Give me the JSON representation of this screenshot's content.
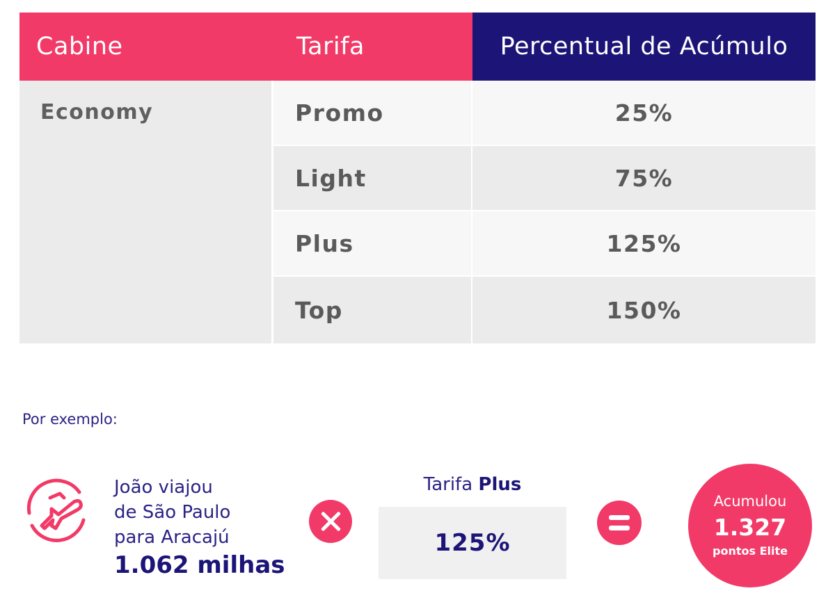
{
  "table": {
    "headers": {
      "cabine": "Cabine",
      "tarifa": "Tarifa",
      "percentual": "Percentual de Acúmulo"
    },
    "cabine": "Economy",
    "rows": [
      {
        "tarifa": "Promo",
        "percentual": "25%"
      },
      {
        "tarifa": "Light",
        "percentual": "75%"
      },
      {
        "tarifa": "Plus",
        "percentual": "125%"
      },
      {
        "tarifa": "Top",
        "percentual": "150%"
      }
    ]
  },
  "example": {
    "intro": "Por exemplo:",
    "trip_lines": [
      "João viajou",
      "de São Paulo",
      "para Aracajú"
    ],
    "miles": "1.062 milhas",
    "fare_prefix": "Tarifa",
    "fare_name": "Plus",
    "fare_percent": "125%",
    "result_top": "Acumulou",
    "result_value": "1.327",
    "result_bottom": "pontos Elite"
  },
  "colors": {
    "accent_pink": "#f23a68",
    "navy": "#1c1577",
    "row_light": "#f7f7f7",
    "row_dark": "#ebebeb"
  },
  "icons": [
    "plane-landing-icon",
    "times-icon",
    "equals-icon"
  ]
}
